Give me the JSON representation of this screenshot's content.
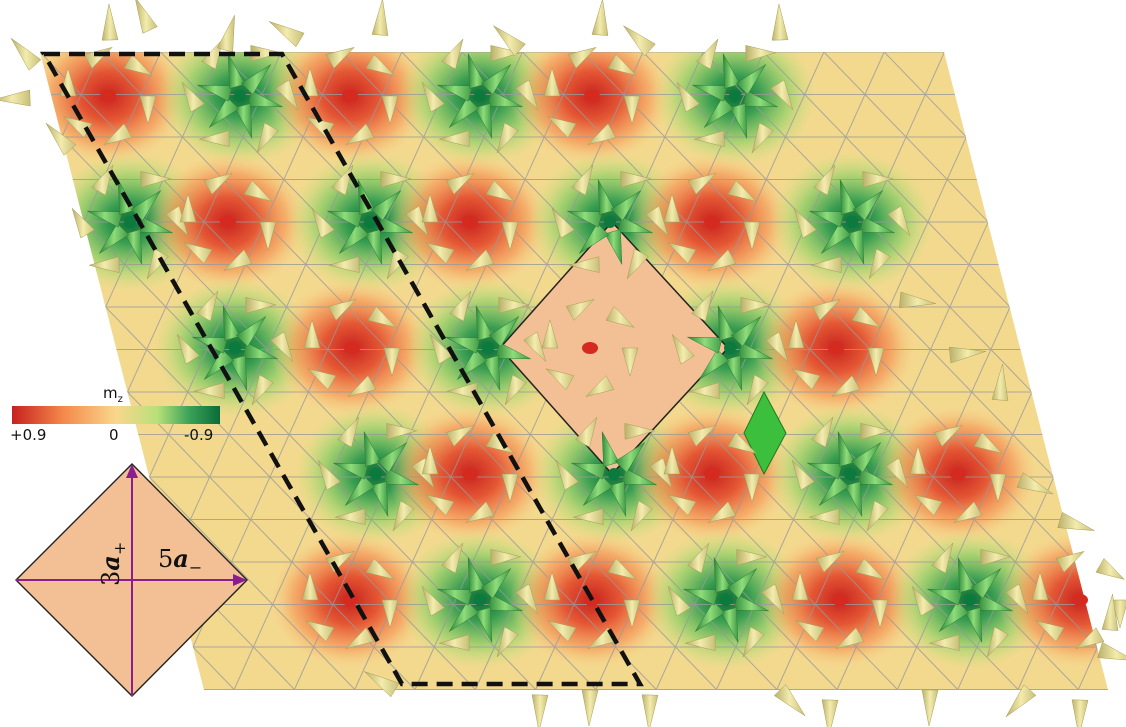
{
  "colorbar": {
    "title": "m",
    "title_sub": "z",
    "tick_left": "+0.9",
    "tick_mid": "0",
    "tick_right": "-0.9",
    "stops": [
      "#c8211f",
      "#f48a4c",
      "#f9d78c",
      "#b8e07a",
      "#3aa458",
      "#0b6b38"
    ]
  },
  "inset": {
    "label_vertical_num": "3",
    "label_vertical_vec": "a",
    "label_vertical_sub": "+",
    "label_horizontal_num": "5",
    "label_horizontal_vec": "a",
    "label_horizontal_sub": "−",
    "fill": "#f2c094",
    "arrow_color": "#8a1e8e"
  },
  "colors": {
    "red_core": "#d42a1f",
    "green_core": "#0c7a3c",
    "neutral": "#f6dc8d",
    "cone_light": "#f0e7a0",
    "cone_green": "#3fb14e",
    "grid": "#9a9a9a",
    "unit_cell_border": "#111111",
    "highlight_square": "#f2c094",
    "highlight_rhombus": "#3cbf3c"
  }
}
